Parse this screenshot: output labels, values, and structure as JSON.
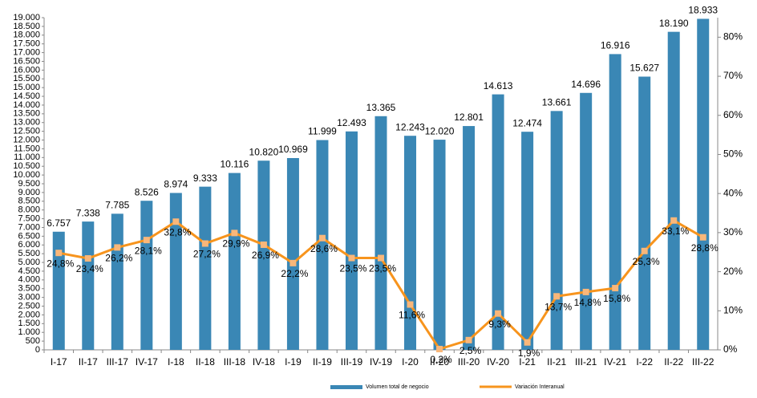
{
  "chart_data": {
    "type": "combo",
    "categories": [
      "I-17",
      "II-17",
      "III-17",
      "IV-17",
      "I-18",
      "II-18",
      "III-18",
      "IV-18",
      "I-19",
      "II-19",
      "III-19",
      "IV-19",
      "I-20",
      "II-20",
      "III-20",
      "IV-20",
      "I-21",
      "II-21",
      "III-21",
      "IV-21",
      "I-22",
      "II-22",
      "III-22"
    ],
    "series": [
      {
        "name": "Volumen total de negocio",
        "type": "bar",
        "color": "#3a87b5",
        "values": [
          6757,
          7338,
          7785,
          8526,
          8974,
          9333,
          10116,
          10820,
          10969,
          11999,
          12493,
          13365,
          12243,
          12020,
          12801,
          14613,
          12474,
          13661,
          14696,
          16916,
          15627,
          18190,
          18933
        ],
        "value_labels": [
          "6.757",
          "7.338",
          "7.785",
          "8.526",
          "8.974",
          "9.333",
          "10.116",
          "10.820",
          "10.969",
          "11.999",
          "12.493",
          "13.365",
          "12.243",
          "12.020",
          "12.801",
          "14.613",
          "12.474",
          "13.661",
          "14.696",
          "16.916",
          "15.627",
          "18.190",
          "18.933"
        ]
      },
      {
        "name": "Variación Interanual",
        "type": "line",
        "axis": "y2",
        "color": "#f7941d",
        "marker_color": "#f9b77a",
        "values": [
          24.8,
          23.4,
          26.2,
          28.1,
          32.8,
          27.2,
          29.9,
          26.9,
          22.2,
          28.6,
          23.5,
          23.5,
          11.6,
          0.2,
          2.5,
          9.3,
          1.9,
          13.7,
          14.8,
          15.8,
          25.3,
          33.1,
          28.8
        ],
        "value_labels": [
          "24,8%",
          "23,4%",
          "26,2%",
          "28,1%",
          "32,8%",
          "27,2%",
          "29,9%",
          "26,9%",
          "22,2%",
          "28,6%",
          "23,5%",
          "23,5%",
          "11,6%",
          "0,2%",
          "2,5%",
          "9,3%",
          "1,9%",
          "13,7%",
          "14,8%",
          "15,8%",
          "25,3%",
          "33,1%",
          "28,8%"
        ]
      }
    ],
    "ylim": [
      0,
      19000
    ],
    "yticks": [
      0,
      500,
      {
        "value": 1000,
        "label": "1.000"
      },
      {
        "value": 1500,
        "label": "1.500"
      },
      {
        "value": 2000,
        "label": "2.000"
      },
      {
        "value": 2500,
        "label": "2.500"
      },
      {
        "value": 3000,
        "label": "3.000"
      },
      {
        "value": 3500,
        "label": "3.500"
      },
      {
        "value": 4000,
        "label": "4.000"
      },
      {
        "value": 4500,
        "label": "4.500"
      },
      {
        "value": 5000,
        "label": "5.000"
      },
      {
        "value": 5500,
        "label": "5.500"
      },
      {
        "value": 6000,
        "label": "6.000"
      },
      {
        "value": 6500,
        "label": "6.500"
      },
      {
        "value": 7000,
        "label": "7.000"
      },
      {
        "value": 7500,
        "label": "7.500"
      },
      {
        "value": 8000,
        "label": "8.000"
      },
      {
        "value": 8500,
        "label": "8.500"
      },
      {
        "value": 9000,
        "label": "9.000"
      },
      {
        "value": 9500,
        "label": "9.500"
      },
      {
        "value": 10000,
        "label": "10.000"
      },
      {
        "value": 10500,
        "label": "10.500"
      },
      {
        "value": 11000,
        "label": "11.000"
      },
      {
        "value": 11500,
        "label": "11.500"
      },
      {
        "value": 12000,
        "label": "12.000"
      },
      {
        "value": 12500,
        "label": "12.500"
      },
      {
        "value": 13000,
        "label": "13.000"
      },
      {
        "value": 13500,
        "label": "13.500"
      },
      {
        "value": 14000,
        "label": "14.000"
      },
      {
        "value": 14500,
        "label": "14.500"
      },
      {
        "value": 15000,
        "label": "15.000"
      },
      {
        "value": 15500,
        "label": "15.500"
      },
      {
        "value": 16000,
        "label": "16.000"
      },
      {
        "value": 16500,
        "label": "16.500"
      },
      {
        "value": 17000,
        "label": "17.000"
      },
      {
        "value": 17500,
        "label": "17.500"
      },
      {
        "value": 18000,
        "label": "18.000"
      },
      {
        "value": 18500,
        "label": "18.500"
      },
      {
        "value": 19000,
        "label": "19.000"
      }
    ],
    "y2lim": [
      0,
      85
    ],
    "y2ticks": [
      {
        "value": 0,
        "label": "0%"
      },
      {
        "value": 10,
        "label": "10%"
      },
      {
        "value": 20,
        "label": "20%"
      },
      {
        "value": 30,
        "label": "30%"
      },
      {
        "value": 40,
        "label": "40%"
      },
      {
        "value": 50,
        "label": "50%"
      },
      {
        "value": 60,
        "label": "60%"
      },
      {
        "value": 70,
        "label": "70%"
      },
      {
        "value": 80,
        "label": "80%"
      }
    ],
    "legend": "bottom"
  }
}
